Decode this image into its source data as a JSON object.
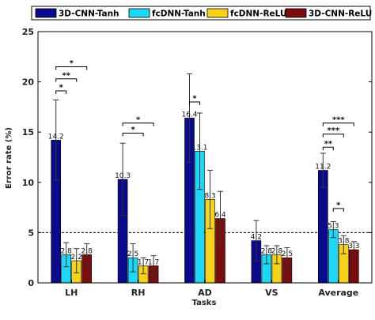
{
  "chart_data": {
    "type": "bar",
    "xlabel": "Tasks",
    "ylabel": "Error rate (%)",
    "ylim": [
      0,
      25
    ],
    "yticks": [
      0,
      5,
      10,
      15,
      20,
      25
    ],
    "categories": [
      "LH",
      "RH",
      "AD",
      "VS",
      "Average"
    ],
    "reference_line": 5,
    "legend_position": "top",
    "series": [
      {
        "name": "3D-CNN-Tanh",
        "color": "#0a0a8c",
        "values": [
          14.2,
          10.3,
          16.4,
          4.2,
          11.2
        ],
        "errors": [
          4.0,
          3.6,
          4.4,
          2.0,
          1.7
        ],
        "labels": [
          "14.2",
          "10.3",
          "16.4",
          "4.2",
          "11.2"
        ]
      },
      {
        "name": "fcDNN-Tanh",
        "color": "#1ed6f5",
        "values": [
          2.8,
          2.5,
          13.1,
          2.8,
          5.3
        ],
        "errors": [
          1.2,
          1.4,
          3.8,
          0.9,
          0.8
        ],
        "labels": [
          "2.8",
          "2.5",
          "13.1",
          "2.8",
          "5.3"
        ]
      },
      {
        "name": "fcDNN-ReLU",
        "color": "#f7d21b",
        "values": [
          2.2,
          1.7,
          8.3,
          2.8,
          3.8
        ],
        "errors": [
          1.2,
          0.8,
          2.9,
          0.9,
          0.9
        ],
        "labels": [
          "2.2",
          "1.7",
          "8.3",
          "2.8",
          "3.8"
        ]
      },
      {
        "name": "3D-CNN-ReLU",
        "color": "#7a0d0d",
        "values": [
          2.8,
          1.7,
          6.4,
          2.5,
          3.3
        ],
        "errors": [
          1.1,
          1.0,
          2.7,
          1.0,
          0.8
        ],
        "labels": [
          "2.8",
          "1.7",
          "6.4",
          "2.5",
          "3.3"
        ]
      }
    ],
    "significance": [
      {
        "category": 0,
        "from": 0,
        "to": 1,
        "y": 19.1,
        "label": "*"
      },
      {
        "category": 0,
        "from": 0,
        "to": 2,
        "y": 20.3,
        "label": "**"
      },
      {
        "category": 0,
        "from": 0,
        "to": 3,
        "y": 21.5,
        "label": "*"
      },
      {
        "category": 1,
        "from": 0,
        "to": 2,
        "y": 14.9,
        "label": "*"
      },
      {
        "category": 1,
        "from": 0,
        "to": 3,
        "y": 15.9,
        "label": "*"
      },
      {
        "category": 2,
        "from": 0,
        "to": 1,
        "y": 18.0,
        "label": "*"
      },
      {
        "category": 4,
        "from": 0,
        "to": 1,
        "y": 13.5,
        "label": "**"
      },
      {
        "category": 4,
        "from": 0,
        "to": 2,
        "y": 14.8,
        "label": "***"
      },
      {
        "category": 4,
        "from": 0,
        "to": 3,
        "y": 15.9,
        "label": "***"
      },
      {
        "category": 4,
        "from": 1,
        "to": 2,
        "y": 7.4,
        "label": "*"
      }
    ]
  }
}
